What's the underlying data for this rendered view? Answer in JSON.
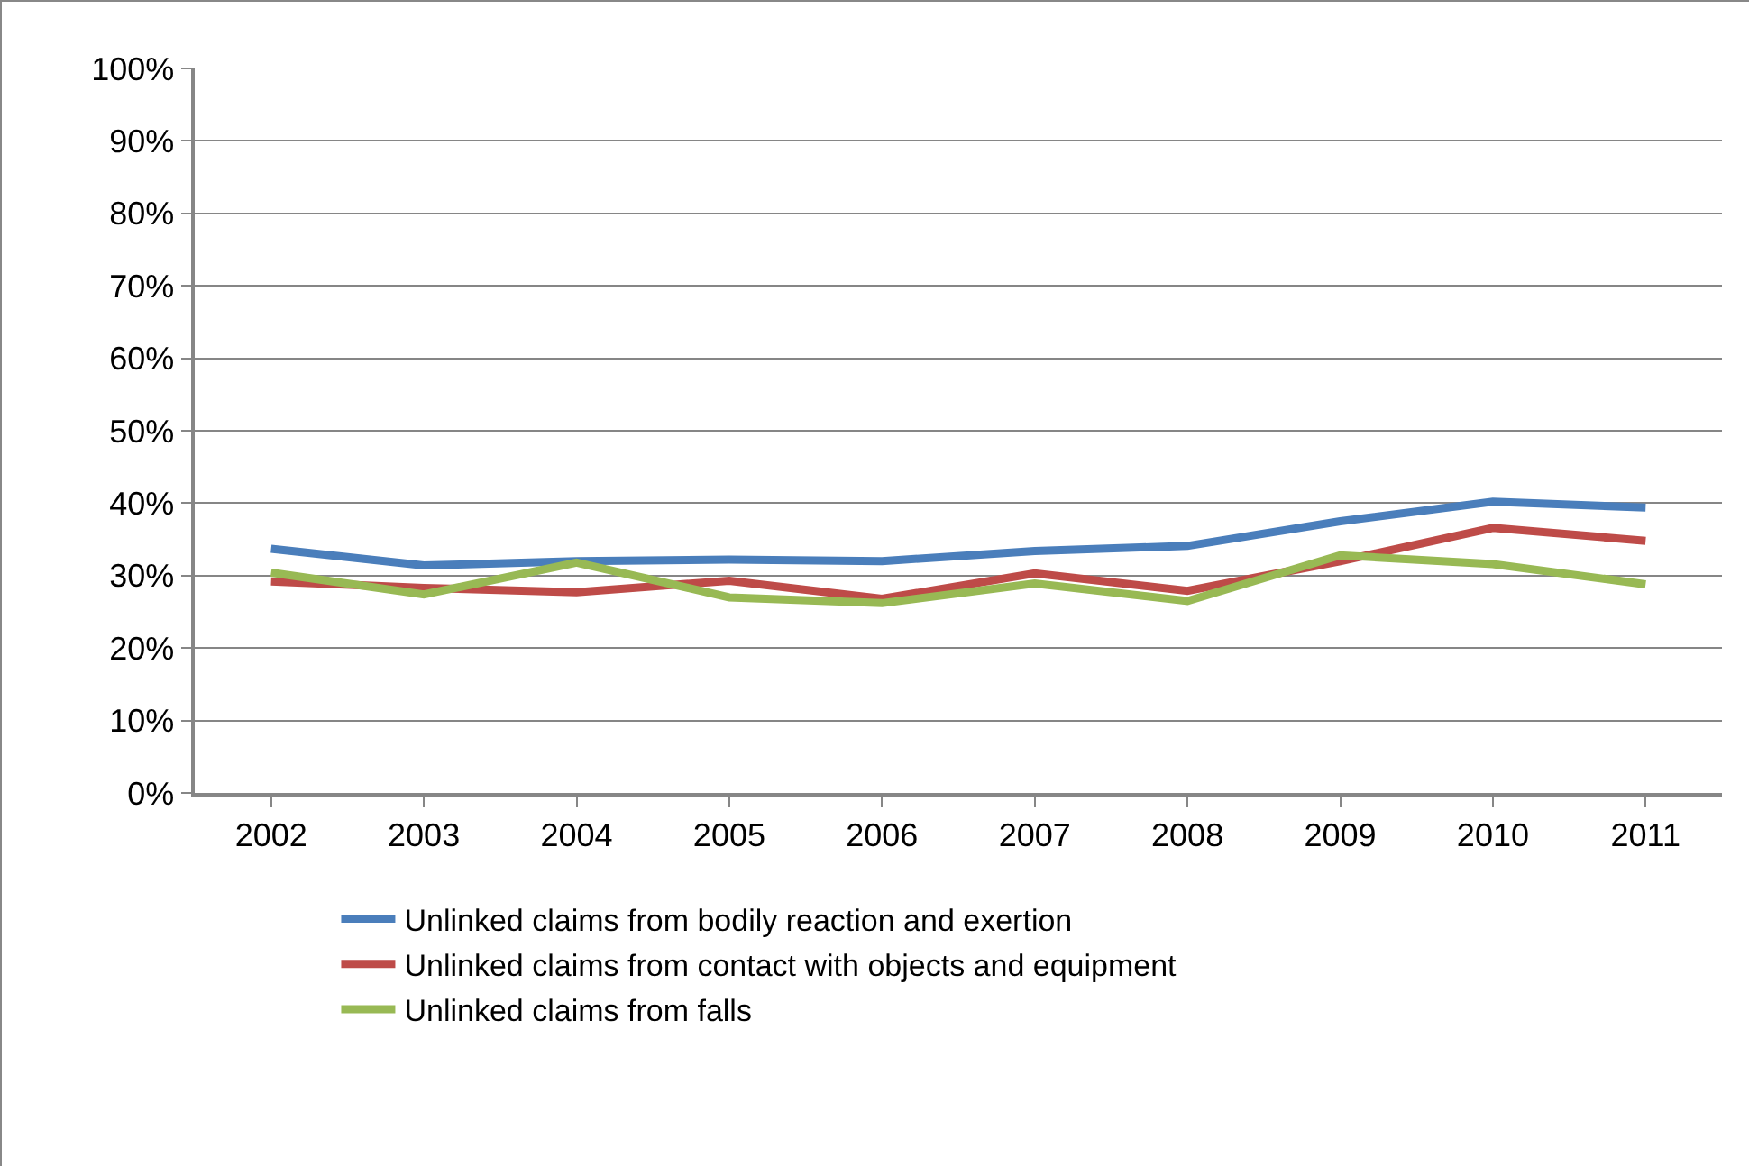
{
  "chart_data": {
    "type": "line",
    "categories": [
      "2002",
      "2003",
      "2004",
      "2005",
      "2006",
      "2007",
      "2008",
      "2009",
      "2010",
      "2011"
    ],
    "series": [
      {
        "name": "Unlinked claims from bodily reaction and exertion",
        "color": "#4a7ebb",
        "values": [
          33.7,
          31.4,
          32.0,
          32.2,
          32.0,
          33.4,
          34.1,
          37.5,
          40.2,
          39.4
        ]
      },
      {
        "name": "Unlinked claims from contact with objects and equipment",
        "color": "#be4b48",
        "values": [
          29.2,
          28.3,
          27.7,
          29.3,
          26.8,
          30.3,
          27.9,
          32.0,
          36.6,
          34.8
        ]
      },
      {
        "name": "Unlinked claims from falls",
        "color": "#98b954",
        "values": [
          30.4,
          27.4,
          31.8,
          27.0,
          26.2,
          28.9,
          26.5,
          32.8,
          31.6,
          28.8
        ]
      }
    ],
    "ylim": [
      0,
      100
    ],
    "yticks": [
      {
        "value": 0,
        "label": "0%"
      },
      {
        "value": 10,
        "label": "10%"
      },
      {
        "value": 20,
        "label": "20%"
      },
      {
        "value": 30,
        "label": "30%"
      },
      {
        "value": 40,
        "label": "40%"
      },
      {
        "value": 50,
        "label": "50%"
      },
      {
        "value": 60,
        "label": "60%"
      },
      {
        "value": 70,
        "label": "70%"
      },
      {
        "value": 80,
        "label": "80%"
      },
      {
        "value": 90,
        "label": "90%"
      },
      {
        "value": 100,
        "label": "100%"
      }
    ],
    "grid": "y",
    "legend": "bottom",
    "marker": "none",
    "line_style": "solid"
  }
}
